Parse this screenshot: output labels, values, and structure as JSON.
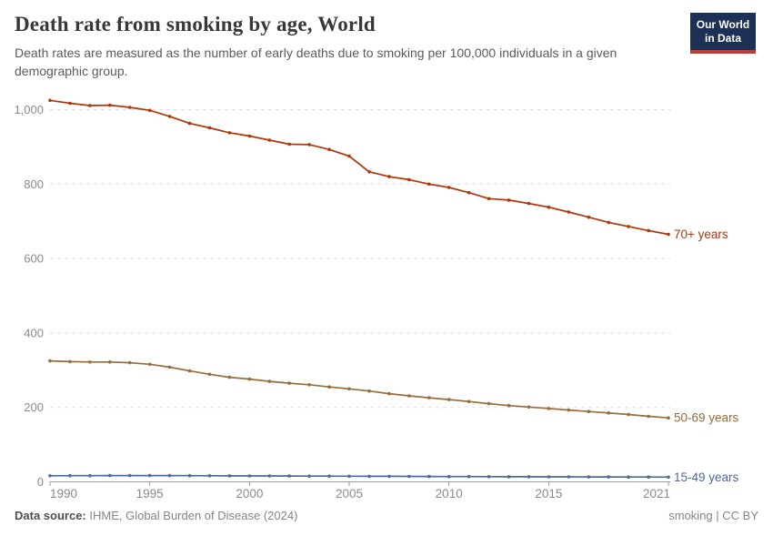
{
  "header": {
    "title": "Death rate from smoking by age, World",
    "subtitle": "Death rates are measured as the number of early deaths due to smoking per 100,000 individuals in a given demographic group.",
    "logo": {
      "line1": "Our World",
      "line2": "in Data"
    }
  },
  "footer": {
    "source_label": "Data source:",
    "source_text": " IHME, Global Burden of Disease (2024)",
    "right_text": "smoking | CC BY"
  },
  "colors": {
    "series_70plus": "#B13507",
    "series_50_69": "#996D39",
    "series_15_49": "#4C6A9C",
    "gridline": "#dedede",
    "axis_line": "#999999",
    "tick_label": "#8b8b8b",
    "logo_bg": "#1d3156",
    "logo_red": "#c43d33"
  },
  "chart_data": {
    "type": "line",
    "title": "Death rate from smoking by age, World",
    "xlabel": "",
    "ylabel": "",
    "grid": true,
    "legend_position": "end-of-line labels, right side",
    "xlim": [
      1990,
      2021
    ],
    "ylim": [
      0,
      1050
    ],
    "x": [
      1990,
      1991,
      1992,
      1993,
      1994,
      1995,
      1996,
      1997,
      1998,
      1999,
      2000,
      2001,
      2002,
      2003,
      2004,
      2005,
      2006,
      2007,
      2008,
      2009,
      2010,
      2011,
      2012,
      2013,
      2014,
      2015,
      2016,
      2017,
      2018,
      2019,
      2020,
      2021
    ],
    "x_ticks": [
      {
        "value": 1990,
        "label": "1990"
      },
      {
        "value": 1995,
        "label": "1995"
      },
      {
        "value": 2000,
        "label": "2000"
      },
      {
        "value": 2005,
        "label": "2005"
      },
      {
        "value": 2010,
        "label": "2010"
      },
      {
        "value": 2015,
        "label": "2015"
      },
      {
        "value": 2021,
        "label": "2021"
      }
    ],
    "y_ticks": [
      {
        "value": 0,
        "label": "0"
      },
      {
        "value": 200,
        "label": "200"
      },
      {
        "value": 400,
        "label": "400"
      },
      {
        "value": 600,
        "label": "600"
      },
      {
        "value": 800,
        "label": "800"
      },
      {
        "value": 1000,
        "label": "1,000"
      }
    ],
    "series": [
      {
        "name": "70+ years",
        "color": "#B13507",
        "values": [
          1025,
          1017,
          1011,
          1012,
          1006,
          998,
          982,
          963,
          951,
          938,
          929,
          918,
          907,
          906,
          893,
          875,
          833,
          820,
          812,
          800,
          791,
          777,
          761,
          757,
          748,
          738,
          725,
          711,
          697,
          686,
          675,
          665
        ]
      },
      {
        "name": "50-69 years",
        "color": "#996D39",
        "values": [
          325,
          323,
          322,
          322,
          320,
          316,
          308,
          298,
          289,
          281,
          276,
          270,
          265,
          261,
          255,
          250,
          244,
          237,
          231,
          226,
          221,
          216,
          210,
          205,
          201,
          197,
          193,
          189,
          185,
          181,
          176,
          172
        ]
      },
      {
        "name": "15-49 years",
        "color": "#4C6A9C",
        "values": [
          16.5,
          16.6,
          16.7,
          16.8,
          16.9,
          16.9,
          16.8,
          16.6,
          16.4,
          16.2,
          16.0,
          15.8,
          15.6,
          15.4,
          15.3,
          15.1,
          14.9,
          14.8,
          14.6,
          14.5,
          14.3,
          14.1,
          14.0,
          13.8,
          13.7,
          13.5,
          13.4,
          13.2,
          13.1,
          13.0,
          12.9,
          12.8
        ]
      }
    ]
  }
}
